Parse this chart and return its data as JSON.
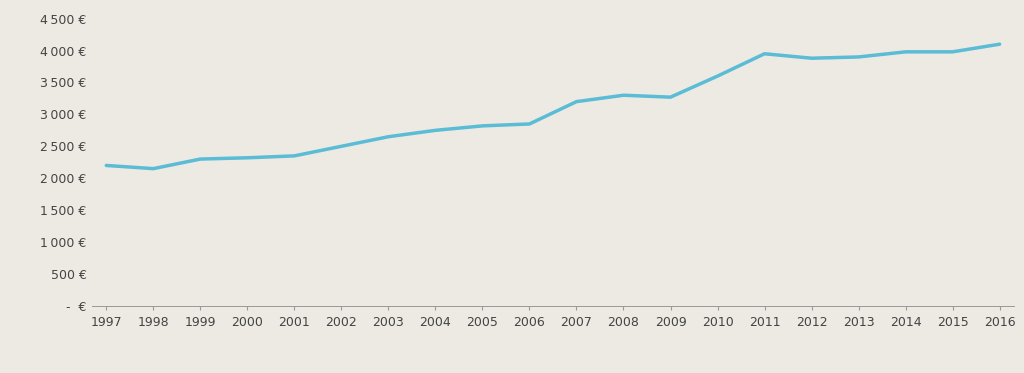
{
  "years": [
    1997,
    1998,
    1999,
    2000,
    2001,
    2002,
    2003,
    2004,
    2005,
    2006,
    2007,
    2008,
    2009,
    2010,
    2011,
    2012,
    2013,
    2014,
    2015,
    2016
  ],
  "values": [
    2200,
    2150,
    2300,
    2320,
    2350,
    2500,
    2650,
    2750,
    2820,
    2850,
    3200,
    3300,
    3270,
    3600,
    3950,
    3880,
    3900,
    3980,
    3980,
    4100
  ],
  "line_color": "#5bbcd6",
  "background_color": "#edeae4",
  "ylim": [
    0,
    4500
  ],
  "ytick_step": 500,
  "line_width": 2.5
}
